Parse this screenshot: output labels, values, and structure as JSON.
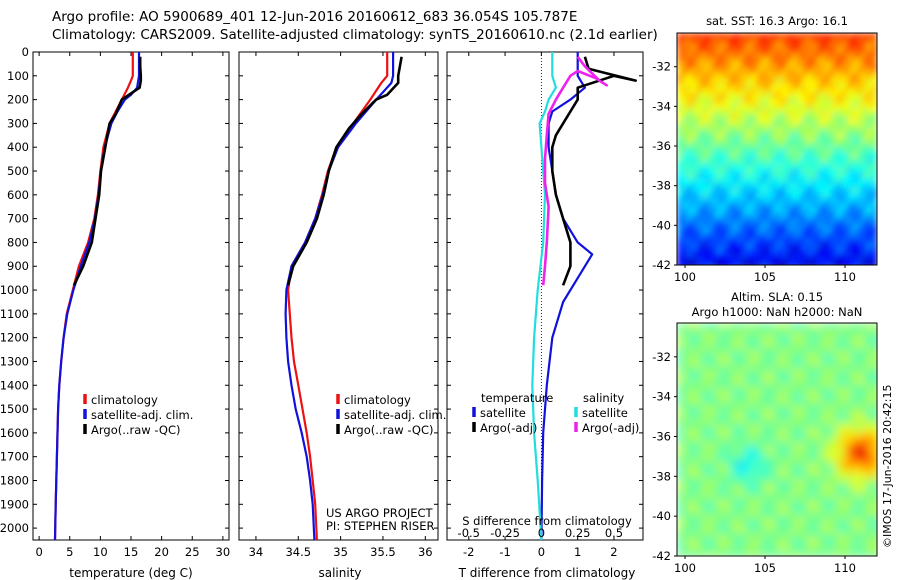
{
  "header": {
    "line1": "Argo profile: AO 5900689_401 12-Jun-2016 20160612_683 36.054S 105.787E",
    "line2": "Climatology: CARS2009. Satellite-adjusted climatology: synTS_20160610.nc (2.1d earlier)"
  },
  "colors": {
    "climatology": "#ee1111",
    "satellite": "#1111dd",
    "argo": "#000000",
    "satellite_s": "#22dddd",
    "argo_s": "#ee22ee"
  },
  "chart_data": [
    {
      "type": "line",
      "id": "temperature",
      "xlabel": "temperature (deg C)",
      "xlim": [
        -1,
        31
      ],
      "xticks": [
        0,
        5,
        10,
        15,
        20,
        25,
        30
      ],
      "ylim": [
        0,
        2050
      ],
      "yticks": [
        0,
        100,
        200,
        300,
        400,
        500,
        600,
        700,
        800,
        900,
        1000,
        1100,
        1200,
        1300,
        1400,
        1500,
        1600,
        1700,
        1800,
        1900,
        2000
      ],
      "y_reversed": true,
      "legend": [
        "climatology",
        "satellite-adj. clim.",
        "Argo(..raw -QC)"
      ],
      "series": [
        {
          "name": "climatology",
          "color_key": "climatology",
          "points": [
            [
              15.3,
              0
            ],
            [
              15.3,
              100
            ],
            [
              15.0,
              120
            ],
            [
              14.5,
              150
            ],
            [
              13.5,
              200
            ],
            [
              12.5,
              250
            ],
            [
              11.5,
              300
            ],
            [
              10.5,
              400
            ],
            [
              10.0,
              500
            ],
            [
              9.6,
              600
            ],
            [
              9.0,
              700
            ],
            [
              8.0,
              800
            ],
            [
              6.5,
              900
            ],
            [
              5.5,
              1000
            ],
            [
              4.5,
              1100
            ],
            [
              4.0,
              1200
            ],
            [
              3.6,
              1300
            ],
            [
              3.3,
              1400
            ],
            [
              3.1,
              1500
            ],
            [
              3.0,
              1600
            ],
            [
              2.9,
              1700
            ],
            [
              2.8,
              1800
            ],
            [
              2.7,
              1900
            ],
            [
              2.6,
              2050
            ]
          ]
        },
        {
          "name": "satellite-adj. clim.",
          "color_key": "satellite",
          "points": [
            [
              16.3,
              0
            ],
            [
              16.3,
              100
            ],
            [
              16.0,
              150
            ],
            [
              15.0,
              180
            ],
            [
              14.0,
              200
            ],
            [
              12.8,
              250
            ],
            [
              11.8,
              300
            ],
            [
              10.7,
              400
            ],
            [
              10.1,
              500
            ],
            [
              9.7,
              600
            ],
            [
              9.1,
              700
            ],
            [
              8.2,
              800
            ],
            [
              6.8,
              900
            ],
            [
              5.6,
              1000
            ],
            [
              4.6,
              1100
            ],
            [
              4.0,
              1200
            ],
            [
              3.6,
              1300
            ],
            [
              3.3,
              1400
            ],
            [
              3.1,
              1500
            ],
            [
              3.0,
              1600
            ],
            [
              2.9,
              1700
            ],
            [
              2.8,
              1800
            ],
            [
              2.7,
              1900
            ],
            [
              2.6,
              2050
            ]
          ]
        },
        {
          "name": "Argo(..raw -QC)",
          "color_key": "argo",
          "points": [
            [
              16.5,
              20
            ],
            [
              16.5,
              60
            ],
            [
              16.6,
              100
            ],
            [
              16.6,
              120
            ],
            [
              16.4,
              150
            ],
            [
              13.5,
              200
            ],
            [
              13.0,
              230
            ],
            [
              12.5,
              260
            ],
            [
              11.5,
              300
            ],
            [
              10.8,
              400
            ],
            [
              10.1,
              500
            ],
            [
              9.8,
              600
            ],
            [
              9.2,
              700
            ],
            [
              8.6,
              800
            ],
            [
              7.2,
              900
            ],
            [
              5.7,
              980
            ]
          ]
        }
      ]
    },
    {
      "type": "line",
      "id": "salinity",
      "xlabel": "salinity",
      "xlim": [
        33.8,
        36.15
      ],
      "xticks": [
        34,
        34.5,
        35,
        35.5,
        36
      ],
      "ylim": [
        0,
        2050
      ],
      "y_reversed": true,
      "legend": [
        "climatology",
        "satellite-adj. clim.",
        "Argo(..raw -QC)"
      ],
      "annotations": [
        "US ARGO PROJECT",
        "PI: STEPHEN RISER"
      ],
      "series": [
        {
          "name": "climatology",
          "color_key": "climatology",
          "points": [
            [
              35.55,
              0
            ],
            [
              35.55,
              100
            ],
            [
              35.48,
              130
            ],
            [
              35.35,
              200
            ],
            [
              35.15,
              300
            ],
            [
              34.95,
              400
            ],
            [
              34.85,
              500
            ],
            [
              34.78,
              600
            ],
            [
              34.7,
              700
            ],
            [
              34.58,
              800
            ],
            [
              34.42,
              900
            ],
            [
              34.38,
              1000
            ],
            [
              34.4,
              1100
            ],
            [
              34.42,
              1200
            ],
            [
              34.45,
              1300
            ],
            [
              34.5,
              1400
            ],
            [
              34.55,
              1500
            ],
            [
              34.6,
              1600
            ],
            [
              34.64,
              1700
            ],
            [
              34.67,
              1800
            ],
            [
              34.7,
              1900
            ],
            [
              34.72,
              2050
            ]
          ]
        },
        {
          "name": "satellite-adj. clim.",
          "color_key": "satellite",
          "points": [
            [
              35.62,
              0
            ],
            [
              35.62,
              100
            ],
            [
              35.6,
              130
            ],
            [
              35.42,
              200
            ],
            [
              35.18,
              300
            ],
            [
              34.97,
              400
            ],
            [
              34.86,
              500
            ],
            [
              34.79,
              600
            ],
            [
              34.7,
              700
            ],
            [
              34.58,
              800
            ],
            [
              34.42,
              900
            ],
            [
              34.36,
              1000
            ],
            [
              34.35,
              1100
            ],
            [
              34.36,
              1200
            ],
            [
              34.38,
              1300
            ],
            [
              34.42,
              1400
            ],
            [
              34.47,
              1500
            ],
            [
              34.54,
              1600
            ],
            [
              34.6,
              1700
            ],
            [
              34.64,
              1800
            ],
            [
              34.67,
              1900
            ],
            [
              34.69,
              2050
            ]
          ]
        },
        {
          "name": "Argo(..raw -QC)",
          "color_key": "argo",
          "points": [
            [
              35.72,
              20
            ],
            [
              35.7,
              60
            ],
            [
              35.68,
              100
            ],
            [
              35.68,
              130
            ],
            [
              35.55,
              180
            ],
            [
              35.42,
              200
            ],
            [
              35.25,
              260
            ],
            [
              35.1,
              320
            ],
            [
              34.95,
              400
            ],
            [
              34.86,
              500
            ],
            [
              34.8,
              600
            ],
            [
              34.72,
              700
            ],
            [
              34.6,
              800
            ],
            [
              34.44,
              900
            ],
            [
              34.38,
              980
            ]
          ]
        }
      ]
    },
    {
      "type": "line",
      "id": "differences",
      "xlabel": "T difference from climatology",
      "xlabel2": "S difference from climatology",
      "xlim": [
        -2.6,
        2.8
      ],
      "xticks": [
        -2,
        -1,
        0,
        1,
        2
      ],
      "s_xticks": [
        "-0.5",
        "-0.25",
        "0",
        "0.25",
        "0.5"
      ],
      "s_xticks_at": [
        -2,
        -1,
        0,
        1,
        2
      ],
      "ylim": [
        0,
        2050
      ],
      "y_reversed": true,
      "legend_titles": [
        "temperature",
        "salinity"
      ],
      "legend": [
        "satellite",
        "Argo(-adj)",
        "satellite",
        "Argo(-adj)"
      ],
      "series": [
        {
          "name": "satellite",
          "quantity": "temperature",
          "color_key": "satellite",
          "points": [
            [
              1.0,
              0
            ],
            [
              1.0,
              100
            ],
            [
              1.2,
              150
            ],
            [
              0.8,
              200
            ],
            [
              0.3,
              250
            ],
            [
              0.2,
              300
            ],
            [
              0.2,
              400
            ],
            [
              0.3,
              500
            ],
            [
              0.4,
              600
            ],
            [
              0.6,
              700
            ],
            [
              1.0,
              800
            ],
            [
              1.4,
              850
            ],
            [
              1.0,
              950
            ],
            [
              0.6,
              1050
            ],
            [
              0.3,
              1200
            ],
            [
              0.15,
              1400
            ],
            [
              0.05,
              1600
            ],
            [
              0.02,
              1800
            ],
            [
              0.0,
              2050
            ]
          ]
        },
        {
          "name": "Argo(-adj)",
          "quantity": "temperature",
          "color_key": "argo",
          "points": [
            [
              1.2,
              20
            ],
            [
              1.3,
              70
            ],
            [
              1.8,
              90
            ],
            [
              2.6,
              120
            ],
            [
              2.0,
              100
            ],
            [
              1.0,
              150
            ],
            [
              1.0,
              200
            ],
            [
              0.8,
              250
            ],
            [
              0.6,
              300
            ],
            [
              0.4,
              350
            ],
            [
              0.3,
              400
            ],
            [
              0.3,
              500
            ],
            [
              0.4,
              600
            ],
            [
              0.6,
              700
            ],
            [
              0.8,
              800
            ],
            [
              0.8,
              900
            ],
            [
              0.6,
              980
            ]
          ]
        },
        {
          "name": "satellite",
          "quantity": "salinity",
          "color_key": "satellite_s",
          "points": [
            [
              0.3,
              0
            ],
            [
              0.3,
              100
            ],
            [
              0.4,
              150
            ],
            [
              0.2,
              200
            ],
            [
              0.1,
              250
            ],
            [
              -0.05,
              300
            ],
            [
              0.0,
              400
            ],
            [
              0.05,
              500
            ],
            [
              0.1,
              600
            ],
            [
              0.05,
              800
            ],
            [
              -0.1,
              1000
            ],
            [
              -0.2,
              1200
            ],
            [
              -0.25,
              1400
            ],
            [
              -0.2,
              1600
            ],
            [
              -0.1,
              1800
            ],
            [
              0.0,
              2050
            ]
          ]
        },
        {
          "name": "Argo(-adj)",
          "quantity": "salinity",
          "color_key": "argo_s",
          "points": [
            [
              1.0,
              20
            ],
            [
              1.2,
              60
            ],
            [
              1.6,
              120
            ],
            [
              1.8,
              140
            ],
            [
              1.5,
              110
            ],
            [
              1.0,
              80
            ],
            [
              0.8,
              100
            ],
            [
              0.6,
              150
            ],
            [
              0.4,
              200
            ],
            [
              0.2,
              260
            ],
            [
              0.15,
              350
            ],
            [
              0.1,
              450
            ],
            [
              0.1,
              550
            ],
            [
              0.2,
              650
            ],
            [
              0.15,
              800
            ],
            [
              0.1,
              900
            ],
            [
              0.05,
              980
            ]
          ]
        }
      ]
    },
    {
      "type": "heatmap",
      "id": "sst-map",
      "title": "sat. SST: 16.3  Argo: 16.1",
      "xticks": [
        100,
        105,
        110
      ],
      "yticks": [
        -32,
        -34,
        -36,
        -38,
        -40,
        -42
      ],
      "xlim": [
        99.5,
        112
      ],
      "ylim": [
        -42,
        -30.3
      ]
    },
    {
      "type": "heatmap",
      "id": "sla-map",
      "title": "Altim. SLA: 0.15",
      "subtitle": "Argo h1000: NaN h2000: NaN",
      "xticks": [
        100,
        105,
        110
      ],
      "yticks": [
        -32,
        -34,
        -36,
        -38,
        -40,
        -42
      ],
      "xlim": [
        99.5,
        112
      ],
      "ylim": [
        -42,
        -30.3
      ]
    }
  ],
  "footer": {
    "timestamp": "©IMOS 17-Jun-2016 20:42:15"
  }
}
